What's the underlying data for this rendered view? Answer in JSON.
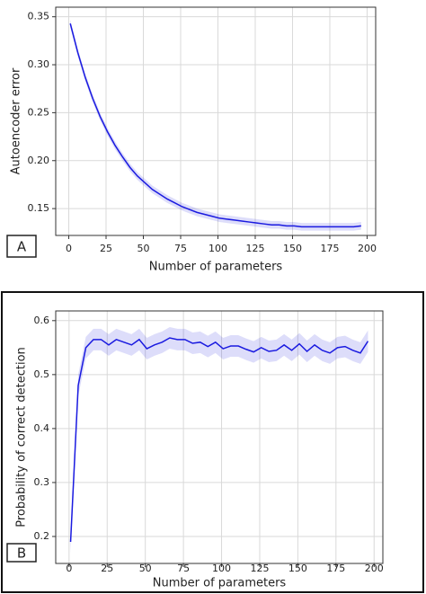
{
  "chart_data": [
    {
      "type": "line",
      "panel_label": "A",
      "x_label": "Number of parameters",
      "y_label": "Autoencoder error",
      "x": [
        1,
        6,
        11,
        16,
        21,
        26,
        31,
        36,
        41,
        46,
        51,
        56,
        61,
        66,
        71,
        76,
        81,
        86,
        91,
        96,
        101,
        106,
        111,
        116,
        121,
        126,
        131,
        136,
        141,
        146,
        151,
        156,
        161,
        166,
        171,
        176,
        181,
        186,
        191,
        196
      ],
      "values": [
        0.343,
        0.313,
        0.287,
        0.265,
        0.246,
        0.23,
        0.216,
        0.204,
        0.193,
        0.184,
        0.177,
        0.17,
        0.165,
        0.16,
        0.156,
        0.152,
        0.149,
        0.146,
        0.144,
        0.142,
        0.14,
        0.139,
        0.138,
        0.137,
        0.136,
        0.135,
        0.134,
        0.133,
        0.133,
        0.132,
        0.132,
        0.131,
        0.131,
        0.131,
        0.131,
        0.131,
        0.131,
        0.131,
        0.131,
        0.132
      ],
      "error": 0.004,
      "color": "#1a1ae0",
      "xlim": [
        -8.75,
        205.75
      ],
      "ylim": [
        0.122,
        0.36
      ],
      "xticks": [
        0,
        25,
        50,
        75,
        100,
        125,
        150,
        175,
        200
      ],
      "yticks": [
        0.15,
        {
          "value": 0.2,
          "label": "0.20"
        },
        0.25,
        {
          "value": 0.3,
          "label": "0.30"
        },
        0.35
      ],
      "grid": true
    },
    {
      "type": "line",
      "panel_label": "B",
      "x_label": "Number of parameters",
      "y_label": "Probability of correct detection",
      "x": [
        1,
        6,
        11,
        16,
        21,
        26,
        31,
        36,
        41,
        46,
        51,
        56,
        61,
        66,
        71,
        76,
        81,
        86,
        91,
        96,
        101,
        106,
        111,
        116,
        121,
        126,
        131,
        136,
        141,
        146,
        151,
        156,
        161,
        166,
        171,
        176,
        181,
        186,
        191,
        196
      ],
      "values": [
        0.19,
        0.48,
        0.55,
        0.565,
        0.565,
        0.555,
        0.565,
        0.56,
        0.555,
        0.565,
        0.548,
        0.555,
        0.56,
        0.568,
        0.565,
        0.565,
        0.558,
        0.56,
        0.552,
        0.56,
        0.548,
        0.553,
        0.553,
        0.547,
        0.542,
        0.55,
        0.543,
        0.545,
        0.555,
        0.545,
        0.557,
        0.543,
        0.555,
        0.545,
        0.54,
        0.55,
        0.552,
        0.545,
        0.54,
        0.562
      ],
      "error": 0.02,
      "color": "#1a1ae0",
      "xlim": [
        -8.75,
        205.75
      ],
      "ylim": [
        0.15,
        0.618
      ],
      "xticks": [
        0,
        25,
        50,
        75,
        100,
        125,
        150,
        175,
        200
      ],
      "yticks": [
        0.2,
        0.3,
        0.4,
        0.5,
        0.6
      ],
      "grid": true
    }
  ]
}
